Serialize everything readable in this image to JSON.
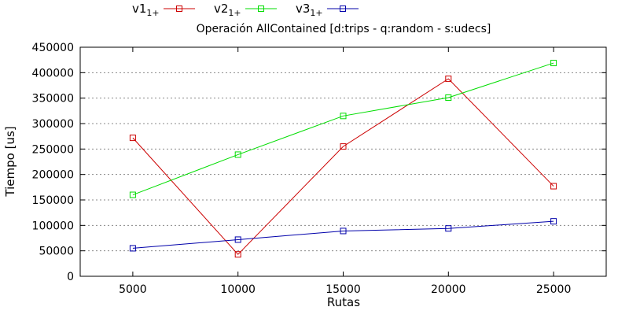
{
  "chart_data": {
    "type": "line",
    "title": "Operación AllContained [d:trips - q:random - s:udecs]",
    "xlabel": "Rutas",
    "ylabel": "Tiempo [us]",
    "x": [
      5000,
      10000,
      15000,
      20000,
      25000
    ],
    "xlim": [
      2500,
      27500
    ],
    "ylim": [
      0,
      450000
    ],
    "yticks": [
      0,
      50000,
      100000,
      150000,
      200000,
      250000,
      300000,
      350000,
      400000,
      450000
    ],
    "grid": true,
    "legend_position": "top",
    "series": [
      {
        "name": "v1",
        "subscript": "1+",
        "color": "#cc0000",
        "values": [
          272000,
          43000,
          255000,
          388000,
          177000
        ]
      },
      {
        "name": "v2",
        "subscript": "1+",
        "color": "#00dd00",
        "values": [
          160000,
          239000,
          315000,
          351000,
          419000
        ]
      },
      {
        "name": "v3",
        "subscript": "1+",
        "color": "#0000aa",
        "values": [
          55000,
          72000,
          89000,
          94000,
          108000
        ]
      }
    ]
  }
}
